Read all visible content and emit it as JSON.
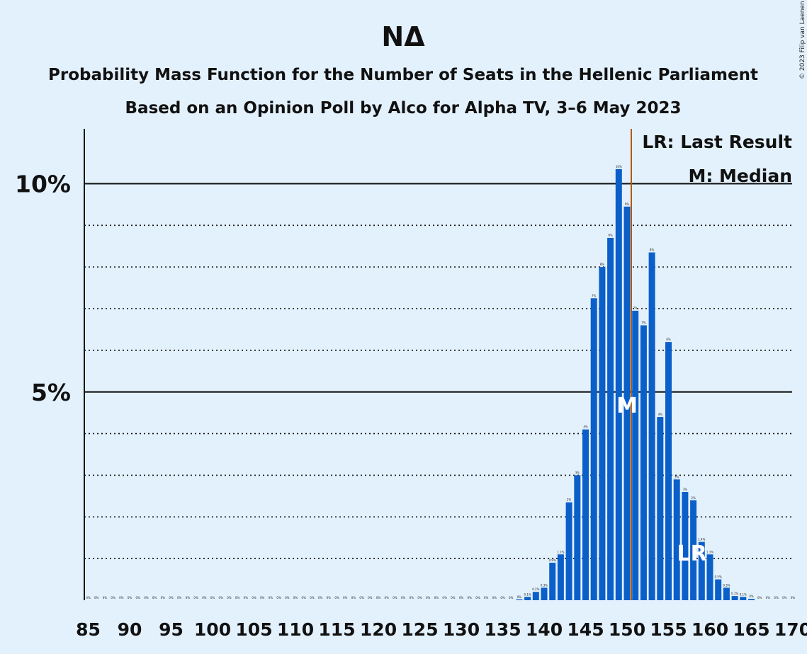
{
  "title": "ΝΔ",
  "subtitle1": "Probability Mass Function for the Number of Seats in the Hellenic Parliament",
  "subtitle2": "Based on an Opinion Poll by Alco for Alpha TV, 3–6 May 2023",
  "copyright": "© 2023 Filip van Laenen",
  "legend": {
    "lr": "LR: Last Result",
    "m": "M: Median"
  },
  "markers": {
    "median": "M",
    "last_result": "LR"
  },
  "colors": {
    "background": "#e3f1fd",
    "bar": "#0b5fc9",
    "median_line": "#b35a00",
    "grid": "#111111"
  },
  "chart_data": {
    "type": "bar",
    "x_range": [
      85,
      170
    ],
    "ylim": [
      0,
      11.3
    ],
    "yticks": [
      {
        "value": 5,
        "label": "5%"
      },
      {
        "value": 10,
        "label": "10%"
      }
    ],
    "xticks": [
      "85",
      "90",
      "95",
      "100",
      "105",
      "110",
      "115",
      "120",
      "125",
      "130",
      "135",
      "140",
      "145",
      "150",
      "155",
      "160",
      "165",
      "170"
    ],
    "median": 150,
    "last_result": 158,
    "grid": "dotted at every 1%, solid at 5% and 10%",
    "values": [
      {
        "seats": 85,
        "pct": 0,
        "label": "0%"
      },
      {
        "seats": 86,
        "pct": 0,
        "label": "0%"
      },
      {
        "seats": 87,
        "pct": 0,
        "label": "0%"
      },
      {
        "seats": 88,
        "pct": 0,
        "label": "0%"
      },
      {
        "seats": 89,
        "pct": 0,
        "label": "0%"
      },
      {
        "seats": 90,
        "pct": 0,
        "label": "0%"
      },
      {
        "seats": 91,
        "pct": 0,
        "label": "0%"
      },
      {
        "seats": 92,
        "pct": 0,
        "label": "0%"
      },
      {
        "seats": 93,
        "pct": 0,
        "label": "0%"
      },
      {
        "seats": 94,
        "pct": 0,
        "label": "0%"
      },
      {
        "seats": 95,
        "pct": 0,
        "label": "0%"
      },
      {
        "seats": 96,
        "pct": 0,
        "label": "0%"
      },
      {
        "seats": 97,
        "pct": 0,
        "label": "0%"
      },
      {
        "seats": 98,
        "pct": 0,
        "label": "0%"
      },
      {
        "seats": 99,
        "pct": 0,
        "label": "0%"
      },
      {
        "seats": 100,
        "pct": 0,
        "label": "0%"
      },
      {
        "seats": 101,
        "pct": 0,
        "label": "0%"
      },
      {
        "seats": 102,
        "pct": 0,
        "label": "0%"
      },
      {
        "seats": 103,
        "pct": 0,
        "label": "0%"
      },
      {
        "seats": 104,
        "pct": 0,
        "label": "0%"
      },
      {
        "seats": 105,
        "pct": 0,
        "label": "0%"
      },
      {
        "seats": 106,
        "pct": 0,
        "label": "0%"
      },
      {
        "seats": 107,
        "pct": 0,
        "label": "0%"
      },
      {
        "seats": 108,
        "pct": 0,
        "label": "0%"
      },
      {
        "seats": 109,
        "pct": 0,
        "label": "0%"
      },
      {
        "seats": 110,
        "pct": 0,
        "label": "0%"
      },
      {
        "seats": 111,
        "pct": 0,
        "label": "0%"
      },
      {
        "seats": 112,
        "pct": 0,
        "label": "0%"
      },
      {
        "seats": 113,
        "pct": 0,
        "label": "0%"
      },
      {
        "seats": 114,
        "pct": 0,
        "label": "0%"
      },
      {
        "seats": 115,
        "pct": 0,
        "label": "0%"
      },
      {
        "seats": 116,
        "pct": 0,
        "label": "0%"
      },
      {
        "seats": 117,
        "pct": 0,
        "label": "0%"
      },
      {
        "seats": 118,
        "pct": 0,
        "label": "0%"
      },
      {
        "seats": 119,
        "pct": 0,
        "label": "0%"
      },
      {
        "seats": 120,
        "pct": 0,
        "label": "0%"
      },
      {
        "seats": 121,
        "pct": 0,
        "label": "0%"
      },
      {
        "seats": 122,
        "pct": 0,
        "label": "0%"
      },
      {
        "seats": 123,
        "pct": 0,
        "label": "0%"
      },
      {
        "seats": 124,
        "pct": 0,
        "label": "0%"
      },
      {
        "seats": 125,
        "pct": 0,
        "label": "0%"
      },
      {
        "seats": 126,
        "pct": 0,
        "label": "0%"
      },
      {
        "seats": 127,
        "pct": 0,
        "label": "0%"
      },
      {
        "seats": 128,
        "pct": 0,
        "label": "0%"
      },
      {
        "seats": 129,
        "pct": 0,
        "label": "0%"
      },
      {
        "seats": 130,
        "pct": 0,
        "label": "0%"
      },
      {
        "seats": 131,
        "pct": 0,
        "label": "0%"
      },
      {
        "seats": 132,
        "pct": 0,
        "label": "0%"
      },
      {
        "seats": 133,
        "pct": 0,
        "label": "0%"
      },
      {
        "seats": 134,
        "pct": 0,
        "label": "0%"
      },
      {
        "seats": 135,
        "pct": 0,
        "label": "0%"
      },
      {
        "seats": 136,
        "pct": 0,
        "label": "0%"
      },
      {
        "seats": 137,
        "pct": 0.02,
        "label": "0%"
      },
      {
        "seats": 138,
        "pct": 0.08,
        "label": "0.1%"
      },
      {
        "seats": 139,
        "pct": 0.2,
        "label": "0.2%"
      },
      {
        "seats": 140,
        "pct": 0.3,
        "label": "0.3%"
      },
      {
        "seats": 141,
        "pct": 0.9,
        "label": "0.9%"
      },
      {
        "seats": 142,
        "pct": 1.1,
        "label": "1.1%"
      },
      {
        "seats": 143,
        "pct": 2.35,
        "label": "2%"
      },
      {
        "seats": 144,
        "pct": 3.0,
        "label": "3%"
      },
      {
        "seats": 145,
        "pct": 4.1,
        "label": "4%"
      },
      {
        "seats": 146,
        "pct": 7.25,
        "label": "7%"
      },
      {
        "seats": 147,
        "pct": 8.0,
        "label": "8%"
      },
      {
        "seats": 148,
        "pct": 8.7,
        "label": "9%"
      },
      {
        "seats": 149,
        "pct": 10.35,
        "label": "10%"
      },
      {
        "seats": 150,
        "pct": 9.45,
        "label": "9%"
      },
      {
        "seats": 151,
        "pct": 6.95,
        "label": "7%"
      },
      {
        "seats": 152,
        "pct": 6.6,
        "label": "7%"
      },
      {
        "seats": 153,
        "pct": 8.35,
        "label": "8%"
      },
      {
        "seats": 154,
        "pct": 4.4,
        "label": "4%"
      },
      {
        "seats": 155,
        "pct": 6.2,
        "label": "6%"
      },
      {
        "seats": 156,
        "pct": 2.9,
        "label": "3%"
      },
      {
        "seats": 157,
        "pct": 2.6,
        "label": "3%"
      },
      {
        "seats": 158,
        "pct": 2.4,
        "label": "2%"
      },
      {
        "seats": 159,
        "pct": 1.4,
        "label": "1.4%"
      },
      {
        "seats": 160,
        "pct": 1.1,
        "label": "1.1%"
      },
      {
        "seats": 161,
        "pct": 0.5,
        "label": "0.5%"
      },
      {
        "seats": 162,
        "pct": 0.3,
        "label": "0.3%"
      },
      {
        "seats": 163,
        "pct": 0.1,
        "label": "0.1%"
      },
      {
        "seats": 164,
        "pct": 0.08,
        "label": "0.1%"
      },
      {
        "seats": 165,
        "pct": 0.03,
        "label": "0%"
      },
      {
        "seats": 166,
        "pct": 0,
        "label": "0%"
      },
      {
        "seats": 167,
        "pct": 0,
        "label": "0%"
      },
      {
        "seats": 168,
        "pct": 0,
        "label": "0%"
      },
      {
        "seats": 169,
        "pct": 0,
        "label": "0%"
      },
      {
        "seats": 170,
        "pct": 0,
        "label": "0%"
      }
    ]
  }
}
